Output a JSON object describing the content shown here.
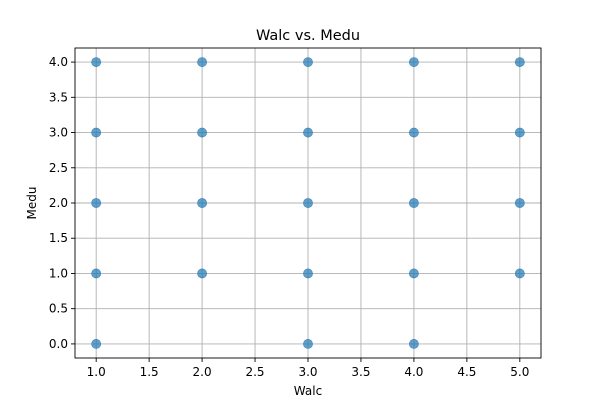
{
  "chart_data": {
    "type": "scatter",
    "title": "Walc vs. Medu",
    "xlabel": "Walc",
    "ylabel": "Medu",
    "xlim": [
      0.8,
      5.2
    ],
    "ylim": [
      -0.2,
      4.2
    ],
    "xticks": [
      1.0,
      1.5,
      2.0,
      2.5,
      3.0,
      3.5,
      4.0,
      4.5,
      5.0
    ],
    "yticks": [
      0.0,
      0.5,
      1.0,
      1.5,
      2.0,
      2.5,
      3.0,
      3.5,
      4.0
    ],
    "xtick_labels": [
      "1.0",
      "1.5",
      "2.0",
      "2.5",
      "3.0",
      "3.5",
      "4.0",
      "4.5",
      "5.0"
    ],
    "ytick_labels": [
      "0.0",
      "0.5",
      "1.0",
      "1.5",
      "2.0",
      "2.5",
      "3.0",
      "3.5",
      "4.0"
    ],
    "grid": true,
    "marker_color": "#1f77b4",
    "points": [
      {
        "x": 1,
        "y": 0
      },
      {
        "x": 1,
        "y": 1
      },
      {
        "x": 1,
        "y": 2
      },
      {
        "x": 1,
        "y": 3
      },
      {
        "x": 1,
        "y": 4
      },
      {
        "x": 2,
        "y": 1
      },
      {
        "x": 2,
        "y": 2
      },
      {
        "x": 2,
        "y": 3
      },
      {
        "x": 2,
        "y": 4
      },
      {
        "x": 3,
        "y": 0
      },
      {
        "x": 3,
        "y": 1
      },
      {
        "x": 3,
        "y": 2
      },
      {
        "x": 3,
        "y": 3
      },
      {
        "x": 3,
        "y": 4
      },
      {
        "x": 4,
        "y": 0
      },
      {
        "x": 4,
        "y": 1
      },
      {
        "x": 4,
        "y": 2
      },
      {
        "x": 4,
        "y": 3
      },
      {
        "x": 4,
        "y": 4
      },
      {
        "x": 5,
        "y": 1
      },
      {
        "x": 5,
        "y": 2
      },
      {
        "x": 5,
        "y": 3
      },
      {
        "x": 5,
        "y": 4
      }
    ]
  }
}
